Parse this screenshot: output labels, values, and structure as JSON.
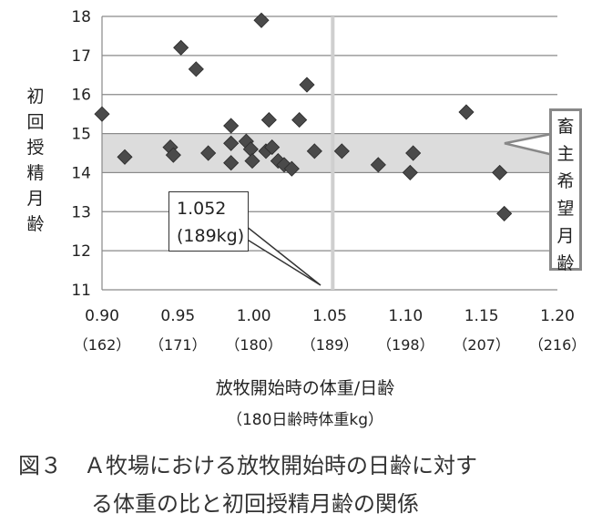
{
  "chart_data": {
    "type": "scatter",
    "xlabel": "放牧開始時の体重/日齢",
    "xlabel_sub": "（180日齢時体重kg）",
    "ylabel": "初回授精月齢",
    "xlim": [
      0.9,
      1.2
    ],
    "ylim": [
      11,
      18
    ],
    "x_ticks": [
      "0.90",
      "0.95",
      "1.00",
      "1.05",
      "1.10",
      "1.15",
      "1.20"
    ],
    "x_ticks_sub": [
      "（162）",
      "（171）",
      "（180）",
      "（189）",
      "（198）",
      "（207）",
      "（216）"
    ],
    "y_ticks": [
      "11",
      "12",
      "13",
      "14",
      "15",
      "16",
      "17",
      "18"
    ],
    "grid": true,
    "points": [
      {
        "x": 0.9,
        "y": 15.5
      },
      {
        "x": 0.915,
        "y": 14.4
      },
      {
        "x": 0.945,
        "y": 14.65
      },
      {
        "x": 0.947,
        "y": 14.45
      },
      {
        "x": 0.952,
        "y": 17.2
      },
      {
        "x": 0.962,
        "y": 16.65
      },
      {
        "x": 0.97,
        "y": 14.5
      },
      {
        "x": 0.985,
        "y": 15.2
      },
      {
        "x": 0.985,
        "y": 14.75
      },
      {
        "x": 0.985,
        "y": 14.25
      },
      {
        "x": 0.995,
        "y": 14.8
      },
      {
        "x": 0.998,
        "y": 14.6
      },
      {
        "x": 0.999,
        "y": 14.3
      },
      {
        "x": 1.005,
        "y": 17.9
      },
      {
        "x": 1.008,
        "y": 14.55
      },
      {
        "x": 1.01,
        "y": 15.35
      },
      {
        "x": 1.012,
        "y": 14.65
      },
      {
        "x": 1.016,
        "y": 14.3
      },
      {
        "x": 1.02,
        "y": 14.2
      },
      {
        "x": 1.025,
        "y": 14.1
      },
      {
        "x": 1.03,
        "y": 15.35
      },
      {
        "x": 1.035,
        "y": 16.25
      },
      {
        "x": 1.04,
        "y": 14.55
      },
      {
        "x": 1.058,
        "y": 14.55
      },
      {
        "x": 1.082,
        "y": 14.2
      },
      {
        "x": 1.103,
        "y": 14.0
      },
      {
        "x": 1.105,
        "y": 14.5
      },
      {
        "x": 1.14,
        "y": 15.55
      },
      {
        "x": 1.162,
        "y": 14.0
      },
      {
        "x": 1.165,
        "y": 12.95
      }
    ],
    "band": {
      "from": 14,
      "to": 15,
      "label": "畜主希望月齢"
    },
    "reference_line": {
      "x": 1.052
    },
    "callout": {
      "line1": "1.052",
      "line2": "(189kg)"
    }
  },
  "caption": {
    "line1": "図３　Ａ牧場における放牧開始時の日齢に対す",
    "line2": "る体重の比と初回授精月齢の関係"
  }
}
